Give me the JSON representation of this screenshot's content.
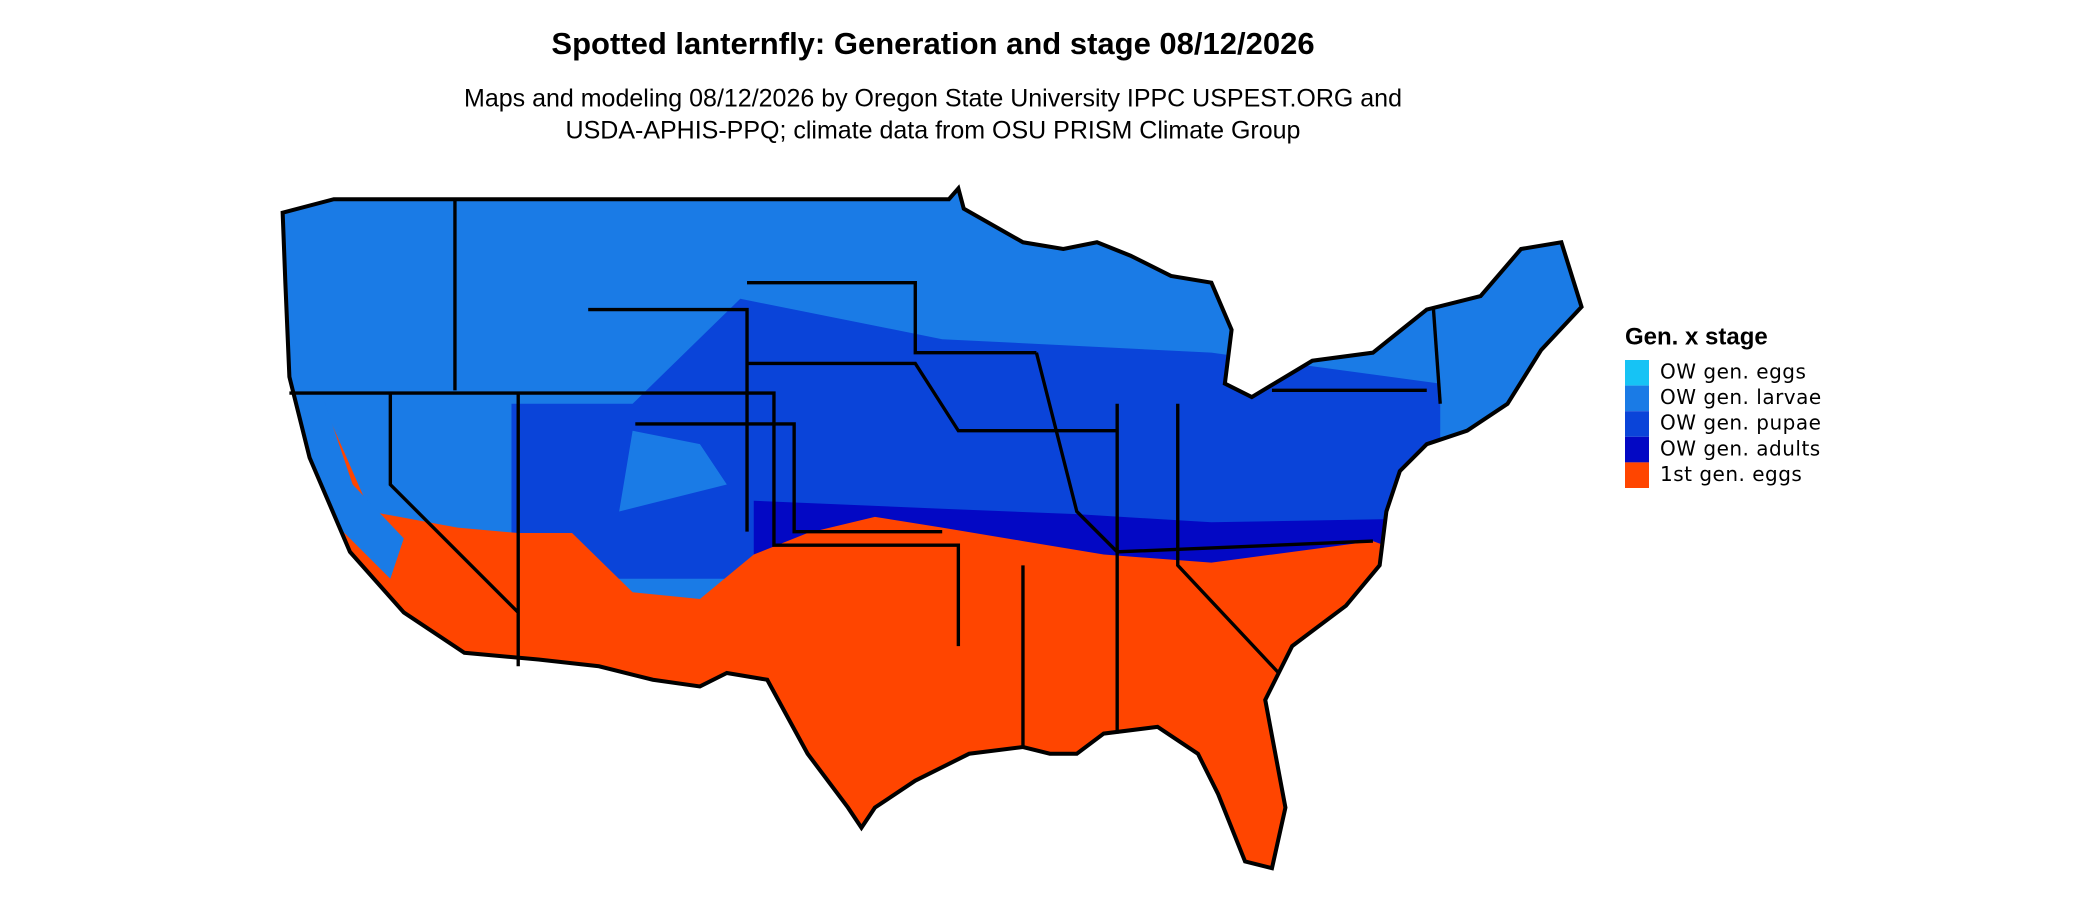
{
  "title": "Spotted lanternfly: Generation and stage 08/12/2026",
  "subtitle": [
    "Maps and modeling 08/12/2026 by Oregon State University IPPC USPEST.ORG and",
    "USDA-APHIS-PPQ; climate data from OSU PRISM Climate Group"
  ],
  "legend": {
    "title": "Gen. x stage",
    "items": [
      {
        "label": "OW gen. eggs",
        "color": "#16c3f5"
      },
      {
        "label": "OW gen. larvae",
        "color": "#1a7be6"
      },
      {
        "label": "OW gen. pupae",
        "color": "#0a44d9"
      },
      {
        "label": "OW gen. adults",
        "color": "#0308c4"
      },
      {
        "label": "1st gen. eggs",
        "color": "#ff4500"
      }
    ]
  }
}
